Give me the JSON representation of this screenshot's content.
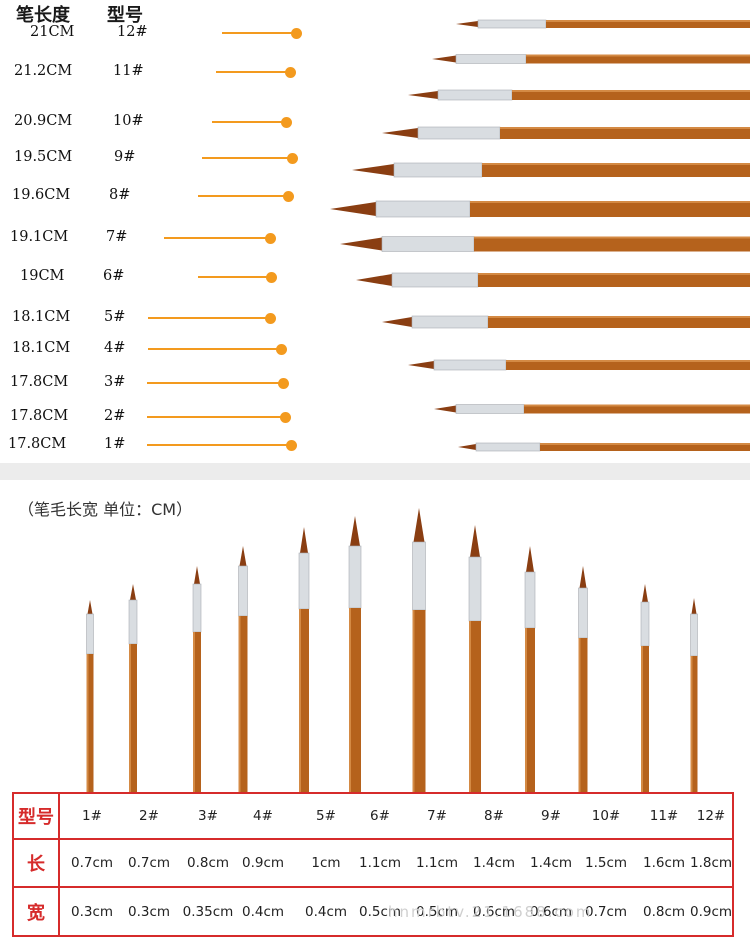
{
  "top_panel": {
    "header_length": "笔长度",
    "header_model": "型号",
    "brushes": [
      {
        "length": "21CM",
        "model": "12#"
      },
      {
        "length": "21.2CM",
        "model": "11#"
      },
      {
        "length": "20.9CM",
        "model": "10#"
      },
      {
        "length": "19.5CM",
        "model": "9#"
      },
      {
        "length": "19.6CM",
        "model": "8#"
      },
      {
        "length": "19.1CM",
        "model": "7#"
      },
      {
        "length": "19CM",
        "model": "6#"
      },
      {
        "length": "18.1CM",
        "model": "5#"
      },
      {
        "length": "18.1CM",
        "model": "4#"
      },
      {
        "length": "17.8CM",
        "model": "3#"
      },
      {
        "length": "17.8CM",
        "model": "2#"
      },
      {
        "length": "17.8CM",
        "model": "1#"
      }
    ]
  },
  "bottom_panel": {
    "unit_label": "（笔毛长宽  单位：CM）",
    "table": {
      "row_headers": {
        "model": "型号",
        "length": "长",
        "width": "宽"
      },
      "columns": [
        {
          "model": "1#",
          "length": "0.7cm",
          "width": "0.3cm"
        },
        {
          "model": "2#",
          "length": "0.7cm",
          "width": "0.3cm"
        },
        {
          "model": "3#",
          "length": "0.8cm",
          "width": "0.35cm"
        },
        {
          "model": "4#",
          "length": "0.9cm",
          "width": "0.4cm"
        },
        {
          "model": "5#",
          "length": "1cm",
          "width": "0.4cm"
        },
        {
          "model": "6#",
          "length": "1.1cm",
          "width": "0.5cm"
        },
        {
          "model": "7#",
          "length": "1.1cm",
          "width": "0.5cm"
        },
        {
          "model": "8#",
          "length": "1.4cm",
          "width": "0.6cm"
        },
        {
          "model": "9#",
          "length": "1.4cm",
          "width": "0.6cm"
        },
        {
          "model": "10#",
          "length": "1.5cm",
          "width": "0.7cm"
        },
        {
          "model": "11#",
          "length": "1.6cm",
          "width": "0.8cm"
        },
        {
          "model": "12#",
          "length": "1.8cm",
          "width": "0.9cm"
        }
      ]
    },
    "watermark": "hnmrbtv.21.1688.com"
  },
  "colors": {
    "accent_orange": "#f39a1e",
    "table_red": "#d62b2b",
    "wood": "#b5621c",
    "bristle": "#8a3e12",
    "ferrule": "#d9dde1"
  }
}
